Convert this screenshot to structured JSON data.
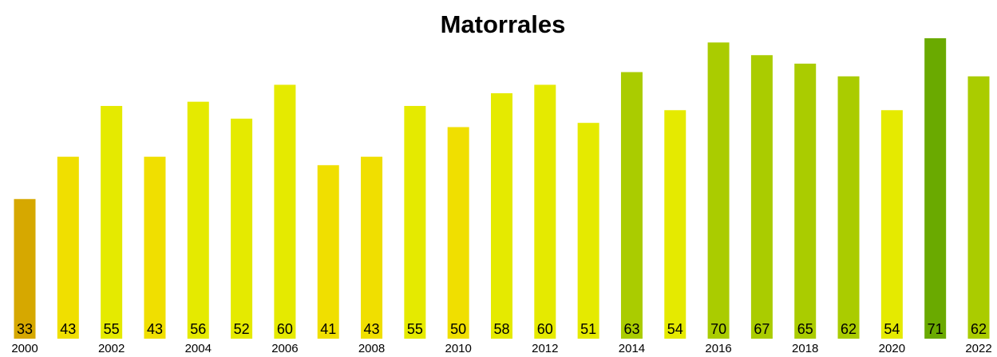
{
  "chart_data": {
    "type": "bar",
    "title": "Matorrales",
    "categories": [
      "2000",
      null,
      "2002",
      null,
      "2004",
      null,
      "2006",
      null,
      "2008",
      null,
      "2010",
      null,
      "2012",
      null,
      "2014",
      null,
      "2016",
      null,
      "2018",
      null,
      "2020",
      null,
      "2022"
    ],
    "values": [
      33,
      43,
      55,
      43,
      56,
      52,
      60,
      41,
      43,
      55,
      50,
      58,
      60,
      51,
      63,
      54,
      70,
      67,
      65,
      62,
      54,
      71,
      62
    ],
    "colors": [
      "#d6a800",
      "#f0df00",
      "#e5ea00",
      "#f0df00",
      "#e5ea00",
      "#e5ea00",
      "#e5ea00",
      "#f0df00",
      "#f0df00",
      "#e5ea00",
      "#f0df00",
      "#e5ea00",
      "#e5ea00",
      "#e5ea00",
      "#aacc00",
      "#e5ea00",
      "#aacc00",
      "#aacc00",
      "#aacc00",
      "#aacc00",
      "#e5ea00",
      "#6aaa00",
      "#aacc00"
    ],
    "ylim": [
      0,
      71
    ]
  }
}
